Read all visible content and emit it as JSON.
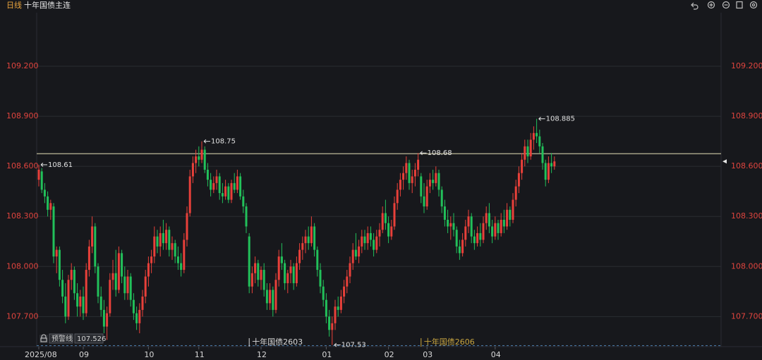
{
  "chart_data": {
    "type": "candlestick",
    "period": "日线",
    "symbol": "十年国债主连",
    "up_color": "#e8403a",
    "down_color": "#22c05a",
    "ylim": [
      107.52,
      109.5
    ],
    "yticks": [
      {
        "value": 107.7,
        "label": "107.700"
      },
      {
        "value": 108.0,
        "label": "108.000"
      },
      {
        "value": 108.3,
        "label": "108.300"
      },
      {
        "value": 108.6,
        "label": "108.600"
      },
      {
        "value": 108.9,
        "label": "108.900"
      },
      {
        "value": 109.2,
        "label": "109.200"
      }
    ],
    "grid": true,
    "xticks": [
      {
        "value": 0,
        "label": "2025/08"
      },
      {
        "value": 15,
        "label": "09"
      },
      {
        "value": 37,
        "label": "10"
      },
      {
        "value": 54,
        "label": "11"
      },
      {
        "value": 75,
        "label": "12"
      },
      {
        "value": 97,
        "label": "01"
      },
      {
        "value": 118,
        "label": "02"
      },
      {
        "value": 131,
        "label": "03"
      },
      {
        "value": 154,
        "label": "04"
      }
    ],
    "ohlc": [
      [
        108.52,
        108.61,
        108.48,
        108.58
      ],
      [
        108.57,
        108.59,
        108.44,
        108.46
      ],
      [
        108.46,
        108.5,
        108.38,
        108.42
      ],
      [
        108.42,
        108.45,
        108.3,
        108.34
      ],
      [
        108.34,
        108.4,
        108.28,
        108.38
      ],
      [
        108.36,
        108.38,
        108.02,
        108.06
      ],
      [
        108.06,
        108.12,
        107.96,
        108.1
      ],
      [
        108.1,
        108.12,
        107.88,
        107.92
      ],
      [
        107.92,
        107.98,
        107.78,
        107.82
      ],
      [
        107.82,
        107.9,
        107.66,
        107.7
      ],
      [
        107.7,
        107.95,
        107.68,
        107.92
      ],
      [
        107.92,
        108.02,
        107.86,
        107.98
      ],
      [
        107.98,
        108.0,
        107.8,
        107.84
      ],
      [
        107.84,
        107.9,
        107.7,
        107.76
      ],
      [
        107.76,
        107.86,
        107.7,
        107.82
      ],
      [
        107.82,
        107.88,
        107.68,
        107.72
      ],
      [
        107.72,
        108.02,
        107.7,
        107.98
      ],
      [
        107.98,
        108.16,
        107.94,
        108.12
      ],
      [
        108.12,
        108.3,
        108.08,
        108.24
      ],
      [
        108.24,
        108.26,
        107.96,
        108.0
      ],
      [
        108.0,
        108.02,
        107.78,
        107.82
      ],
      [
        107.82,
        107.88,
        107.7,
        107.74
      ],
      [
        107.74,
        107.8,
        107.6,
        107.64
      ],
      [
        107.64,
        107.76,
        107.56,
        107.72
      ],
      [
        107.72,
        107.96,
        107.7,
        107.92
      ],
      [
        107.92,
        108.04,
        107.86,
        107.96
      ],
      [
        107.96,
        108.1,
        107.82,
        107.86
      ],
      [
        107.86,
        108.12,
        107.84,
        108.08
      ],
      [
        108.08,
        108.1,
        107.9,
        107.94
      ],
      [
        107.94,
        108.0,
        107.8,
        107.84
      ],
      [
        107.84,
        107.98,
        107.8,
        107.94
      ],
      [
        107.94,
        107.96,
        107.76,
        107.8
      ],
      [
        107.8,
        107.84,
        107.68,
        107.72
      ],
      [
        107.72,
        107.76,
        107.62,
        107.66
      ],
      [
        107.66,
        107.78,
        107.6,
        107.74
      ],
      [
        107.74,
        107.86,
        107.7,
        107.82
      ],
      [
        107.82,
        107.98,
        107.78,
        107.94
      ],
      [
        107.94,
        108.06,
        107.88,
        108.02
      ],
      [
        108.02,
        108.1,
        107.96,
        108.06
      ],
      [
        108.06,
        108.24,
        108.02,
        108.18
      ],
      [
        108.18,
        108.22,
        108.08,
        108.12
      ],
      [
        108.12,
        108.24,
        108.06,
        108.2
      ],
      [
        108.2,
        108.28,
        108.1,
        108.14
      ],
      [
        108.14,
        108.26,
        108.1,
        108.22
      ],
      [
        108.22,
        108.24,
        108.06,
        108.1
      ],
      [
        108.1,
        108.18,
        108.04,
        108.14
      ],
      [
        108.14,
        108.16,
        108.02,
        108.06
      ],
      [
        108.06,
        108.12,
        107.98,
        108.02
      ],
      [
        108.02,
        108.08,
        107.94,
        107.98
      ],
      [
        107.98,
        108.2,
        107.96,
        108.16
      ],
      [
        108.16,
        108.36,
        108.12,
        108.32
      ],
      [
        108.32,
        108.58,
        108.3,
        108.54
      ],
      [
        108.54,
        108.66,
        108.5,
        108.62
      ],
      [
        108.62,
        108.7,
        108.56,
        108.66
      ],
      [
        108.66,
        108.72,
        108.6,
        108.64
      ],
      [
        108.64,
        108.75,
        108.62,
        108.7
      ],
      [
        108.7,
        108.72,
        108.56,
        108.58
      ],
      [
        108.58,
        108.62,
        108.48,
        108.52
      ],
      [
        108.52,
        108.56,
        108.42,
        108.46
      ],
      [
        108.46,
        108.54,
        108.44,
        108.5
      ],
      [
        108.5,
        108.58,
        108.46,
        108.54
      ],
      [
        108.54,
        108.56,
        108.4,
        108.44
      ],
      [
        108.44,
        108.5,
        108.38,
        108.42
      ],
      [
        108.42,
        108.52,
        108.4,
        108.48
      ],
      [
        108.48,
        108.5,
        108.38,
        108.4
      ],
      [
        108.4,
        108.52,
        108.38,
        108.5
      ],
      [
        108.5,
        108.56,
        108.44,
        108.46
      ],
      [
        108.46,
        108.58,
        108.44,
        108.54
      ],
      [
        108.54,
        108.56,
        108.4,
        108.42
      ],
      [
        108.42,
        108.46,
        108.32,
        108.36
      ],
      [
        108.36,
        108.38,
        108.2,
        108.24
      ],
      [
        108.18,
        108.2,
        107.84,
        107.88
      ],
      [
        107.88,
        108.0,
        107.84,
        107.96
      ],
      [
        107.96,
        108.06,
        107.9,
        108.02
      ],
      [
        108.02,
        108.04,
        107.88,
        107.92
      ],
      [
        107.92,
        108.0,
        107.86,
        107.98
      ],
      [
        107.98,
        108.02,
        107.82,
        107.86
      ],
      [
        107.86,
        107.9,
        107.74,
        107.78
      ],
      [
        107.78,
        107.9,
        107.74,
        107.86
      ],
      [
        107.86,
        107.88,
        107.7,
        107.74
      ],
      [
        107.74,
        107.96,
        107.72,
        107.92
      ],
      [
        107.92,
        108.1,
        107.88,
        108.06
      ],
      [
        108.06,
        108.14,
        107.98,
        108.02
      ],
      [
        108.02,
        108.04,
        107.86,
        107.9
      ],
      [
        107.9,
        107.98,
        107.84,
        107.96
      ],
      [
        107.96,
        108.04,
        107.9,
        108.0
      ],
      [
        108.0,
        108.02,
        107.86,
        107.9
      ],
      [
        107.9,
        108.06,
        107.88,
        108.02
      ],
      [
        108.02,
        108.14,
        107.98,
        108.1
      ],
      [
        108.1,
        108.18,
        108.04,
        108.14
      ],
      [
        108.14,
        108.22,
        108.08,
        108.18
      ],
      [
        108.18,
        108.24,
        108.1,
        108.14
      ],
      [
        108.14,
        108.3,
        108.12,
        108.24
      ],
      [
        108.24,
        108.26,
        108.06,
        108.1
      ],
      [
        108.1,
        108.12,
        107.94,
        107.98
      ],
      [
        107.98,
        108.02,
        107.84,
        107.88
      ],
      [
        107.88,
        107.92,
        107.76,
        107.8
      ],
      [
        107.8,
        107.84,
        107.66,
        107.7
      ],
      [
        107.7,
        107.74,
        107.58,
        107.62
      ],
      [
        107.62,
        107.7,
        107.53,
        107.66
      ],
      [
        107.66,
        107.8,
        107.62,
        107.76
      ],
      [
        107.76,
        107.82,
        107.7,
        107.74
      ],
      [
        107.74,
        107.86,
        107.72,
        107.82
      ],
      [
        107.82,
        107.92,
        107.78,
        107.88
      ],
      [
        107.88,
        107.98,
        107.84,
        107.94
      ],
      [
        107.94,
        108.06,
        107.9,
        108.02
      ],
      [
        108.02,
        108.14,
        107.98,
        108.1
      ],
      [
        108.1,
        108.2,
        108.04,
        108.06
      ],
      [
        108.06,
        108.16,
        108.02,
        108.12
      ],
      [
        108.12,
        108.22,
        108.08,
        108.18
      ],
      [
        108.18,
        108.22,
        108.1,
        108.14
      ],
      [
        108.14,
        108.24,
        108.1,
        108.2
      ],
      [
        108.2,
        108.24,
        108.12,
        108.16
      ],
      [
        108.16,
        108.2,
        108.06,
        108.1
      ],
      [
        108.1,
        108.22,
        108.08,
        108.18
      ],
      [
        108.18,
        108.26,
        108.12,
        108.22
      ],
      [
        108.22,
        108.36,
        108.2,
        108.32
      ],
      [
        108.32,
        108.4,
        108.22,
        108.26
      ],
      [
        108.26,
        108.3,
        108.14,
        108.18
      ],
      [
        108.18,
        108.28,
        108.16,
        108.24
      ],
      [
        108.24,
        108.42,
        108.22,
        108.38
      ],
      [
        108.38,
        108.5,
        108.34,
        108.46
      ],
      [
        108.46,
        108.56,
        108.42,
        108.52
      ],
      [
        108.52,
        108.6,
        108.46,
        108.56
      ],
      [
        108.56,
        108.66,
        108.52,
        108.62
      ],
      [
        108.62,
        108.64,
        108.46,
        108.5
      ],
      [
        108.5,
        108.58,
        108.44,
        108.54
      ],
      [
        108.54,
        108.62,
        108.48,
        108.58
      ],
      [
        108.58,
        108.68,
        108.54,
        108.64
      ],
      [
        108.54,
        108.56,
        108.38,
        108.42
      ],
      [
        108.42,
        108.5,
        108.32,
        108.36
      ],
      [
        108.36,
        108.52,
        108.34,
        108.48
      ],
      [
        108.48,
        108.56,
        108.44,
        108.52
      ],
      [
        108.52,
        108.58,
        108.46,
        108.5
      ],
      [
        108.5,
        108.6,
        108.48,
        108.56
      ],
      [
        108.56,
        108.58,
        108.42,
        108.46
      ],
      [
        108.46,
        108.48,
        108.32,
        108.36
      ],
      [
        108.36,
        108.4,
        108.24,
        108.28
      ],
      [
        108.28,
        108.34,
        108.2,
        108.24
      ],
      [
        108.24,
        108.3,
        108.16,
        108.26
      ],
      [
        108.26,
        108.32,
        108.18,
        108.22
      ],
      [
        108.22,
        108.24,
        108.08,
        108.12
      ],
      [
        108.12,
        108.16,
        108.04,
        108.08
      ],
      [
        108.08,
        108.2,
        108.06,
        108.16
      ],
      [
        108.16,
        108.28,
        108.12,
        108.24
      ],
      [
        108.24,
        108.34,
        108.2,
        108.3
      ],
      [
        108.3,
        108.32,
        108.14,
        108.18
      ],
      [
        108.18,
        108.22,
        108.1,
        108.14
      ],
      [
        108.14,
        108.24,
        108.12,
        108.2
      ],
      [
        108.2,
        108.26,
        108.12,
        108.16
      ],
      [
        108.16,
        108.3,
        108.14,
        108.26
      ],
      [
        108.26,
        108.36,
        108.22,
        108.32
      ],
      [
        108.32,
        108.38,
        108.2,
        108.24
      ],
      [
        108.24,
        108.28,
        108.14,
        108.18
      ],
      [
        108.18,
        108.3,
        108.16,
        108.26
      ],
      [
        108.26,
        108.28,
        108.16,
        108.2
      ],
      [
        108.2,
        108.32,
        108.18,
        108.28
      ],
      [
        108.28,
        108.34,
        108.2,
        108.24
      ],
      [
        108.24,
        108.38,
        108.22,
        108.34
      ],
      [
        108.34,
        108.36,
        108.24,
        108.28
      ],
      [
        108.28,
        108.44,
        108.26,
        108.4
      ],
      [
        108.4,
        108.52,
        108.36,
        108.48
      ],
      [
        108.48,
        108.6,
        108.44,
        108.56
      ],
      [
        108.56,
        108.68,
        108.52,
        108.64
      ],
      [
        108.64,
        108.76,
        108.6,
        108.72
      ],
      [
        108.72,
        108.76,
        108.62,
        108.66
      ],
      [
        108.66,
        108.8,
        108.64,
        108.76
      ],
      [
        108.76,
        108.84,
        108.7,
        108.8
      ],
      [
        108.8,
        108.885,
        108.74,
        108.78
      ],
      [
        108.78,
        108.82,
        108.68,
        108.72
      ],
      [
        108.72,
        108.74,
        108.58,
        108.62
      ],
      [
        108.62,
        108.64,
        108.48,
        108.52
      ],
      [
        108.52,
        108.66,
        108.5,
        108.62
      ],
      [
        108.62,
        108.68,
        108.56,
        108.6
      ],
      [
        108.6,
        108.66,
        108.58,
        108.63
      ]
    ],
    "annotations": [
      {
        "x": 0,
        "value": 108.61
      },
      {
        "x": 55,
        "value": 108.75
      },
      {
        "x": 99,
        "value": 107.53
      },
      {
        "x": 128,
        "value": 108.68
      },
      {
        "x": 168,
        "value": 108.885
      }
    ],
    "reference_line": 108.676,
    "alert_line": {
      "label": "预警线",
      "value": 107.526
    },
    "contract_switches": [
      {
        "x": 71,
        "label": "十年国债2603",
        "color": "#d8d8d8"
      },
      {
        "x": 129,
        "label": "十年国债2606",
        "color": "#c9a640"
      }
    ]
  }
}
